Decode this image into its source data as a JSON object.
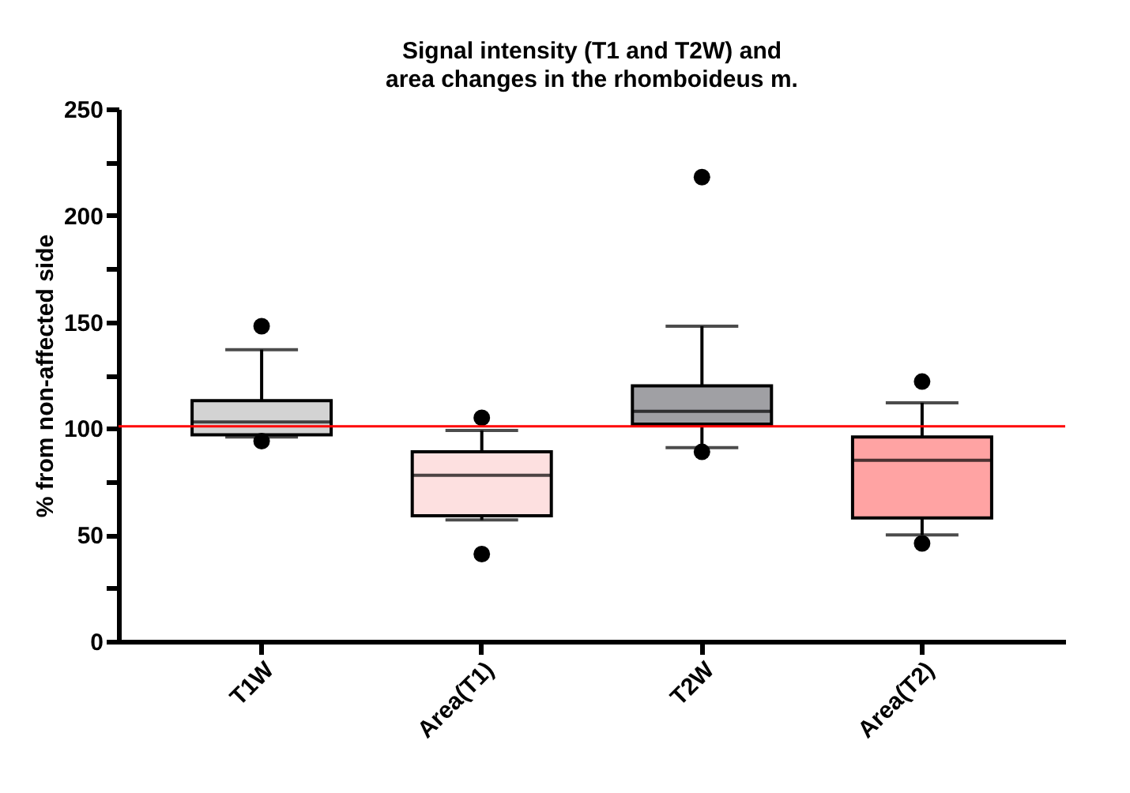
{
  "chart_data": {
    "type": "box",
    "title": "Signal intensity (T1 and T2W) and area changes in the rhomboideus m.",
    "ylabel": "% from non-affected side",
    "categories": [
      "T1W",
      "Area(T1)",
      "T2W",
      "Area(T2)"
    ],
    "colors": [
      "#d3d3d3",
      "#fde0e0",
      "#a0a0a4",
      "#ffa3a3"
    ],
    "boxes": [
      {
        "low": 96,
        "q1": 97,
        "median": 103,
        "q3": 113,
        "high": 137,
        "outliers": [
          148,
          94
        ]
      },
      {
        "low": 57,
        "q1": 59,
        "median": 78,
        "q3": 89,
        "high": 99,
        "outliers": [
          105,
          41
        ]
      },
      {
        "low": 91,
        "q1": 102,
        "median": 108,
        "q3": 120,
        "high": 148,
        "outliers": [
          218,
          89
        ]
      },
      {
        "low": 50,
        "q1": 58,
        "median": 85,
        "q3": 96,
        "high": 112,
        "outliers": [
          122,
          46
        ]
      }
    ],
    "ylim": [
      0,
      250
    ],
    "yticks": [
      0,
      {
        "value": 25,
        "label": null
      },
      50,
      {
        "value": 75,
        "label": null
      },
      100,
      {
        "value": 125,
        "label": null
      },
      150,
      {
        "value": 175,
        "label": null
      },
      200,
      {
        "value": 225,
        "label": null
      },
      250
    ],
    "ref_lines": [
      {
        "axis": "y",
        "value": 101,
        "color": "#ff0000"
      }
    ],
    "grid": false,
    "legend": false
  }
}
